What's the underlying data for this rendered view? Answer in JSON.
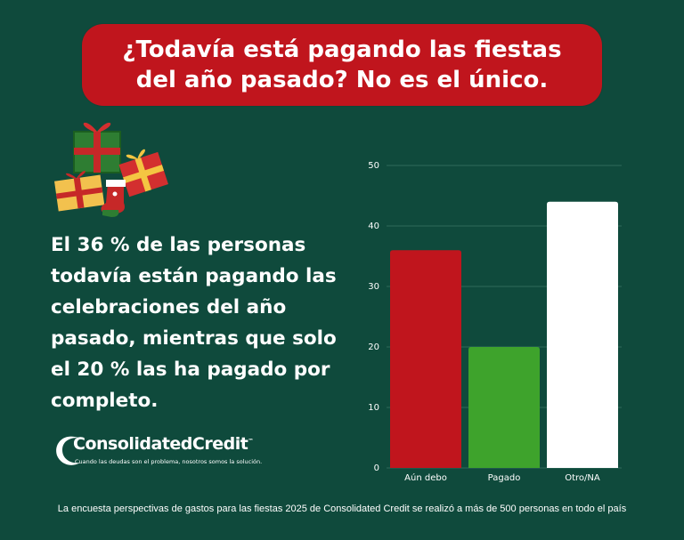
{
  "headline": {
    "line1": "¿Todavía está pagando las fiestas",
    "line2": "del año pasado? No es el único."
  },
  "statement": "El 36 % de las personas todavía están pagando las celebraciones del año pasado, mientras que solo el 20 % las ha pagado por completo.",
  "logo": {
    "name": "ConsolidatedCredit",
    "trademark": "™",
    "tagline": "Cuando las deudas son el problema, nosotros somos la solución."
  },
  "footer": "La encuesta perspectivas de gastos para las fiestas 2025 de Consolidated Credit se realizó a más de 500 personas en todo el país",
  "colors": {
    "background": "#0f4a3c",
    "banner": "#c0151d"
  },
  "chart_data": {
    "type": "bar",
    "categories": [
      "Aún debo",
      "Pagado",
      "Otro/NA"
    ],
    "values": [
      36,
      20,
      44
    ],
    "colors": [
      "#c0151d",
      "#3ea32c",
      "#ffffff"
    ],
    "yticks": [
      0,
      10,
      20,
      30,
      40,
      50
    ],
    "ylim": [
      0,
      50
    ],
    "title": "",
    "xlabel": "",
    "ylabel": "",
    "grid": true
  }
}
